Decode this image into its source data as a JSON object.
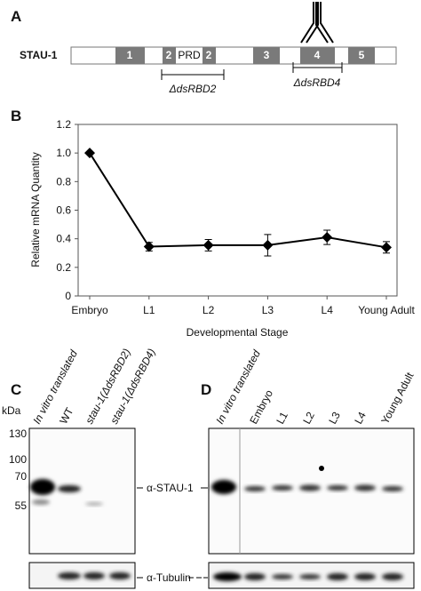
{
  "panel_labels": [
    "A",
    "B",
    "C",
    "D"
  ],
  "gene_diagram": {
    "name": "STAU-1",
    "exons": [
      "1",
      "2",
      "PRD",
      "2",
      "3",
      "4",
      "5"
    ],
    "deletions": [
      "ΔdsRBD2",
      "ΔdsRBD4"
    ]
  },
  "chart_data": {
    "type": "line",
    "x_label": "Developmental Stage",
    "y_label": "Relative mRNA Quantity",
    "categories": [
      "Embryo",
      "L1",
      "L2",
      "L3",
      "L4",
      "Young Adult"
    ],
    "values": [
      1.0,
      0.345,
      0.355,
      0.355,
      0.41,
      0.34
    ],
    "errors": [
      0,
      0.03,
      0.04,
      0.075,
      0.05,
      0.04
    ],
    "color": "#000000",
    "ylim": [
      0,
      1.2
    ],
    "yticks": [
      0,
      0.2,
      0.4,
      0.6,
      0.8,
      {
        "value": 1.0,
        "label": "1.0"
      },
      1.2
    ],
    "grid": false
  },
  "blot_c": {
    "lanes": [
      "In vitro translated",
      "WT",
      "stau-1(ΔdsRBD2)",
      "stau-1(ΔdsRBD4)"
    ],
    "markers_label": "kDa",
    "markers": [
      "130",
      "100",
      "70",
      "55"
    ],
    "antibodies": [
      "α-STAU-1",
      "α-Tubulin"
    ]
  },
  "blot_d": {
    "lanes": [
      "In vitro translated",
      "Embryo",
      "L1",
      "L2",
      "L3",
      "L4",
      "Young Adult"
    ]
  }
}
